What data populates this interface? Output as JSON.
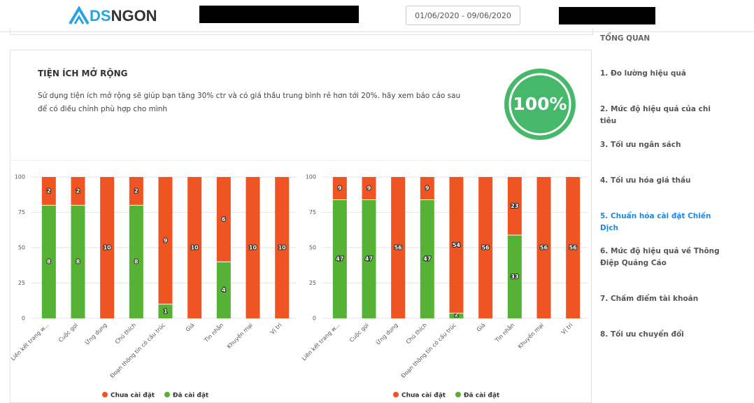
{
  "header": {
    "logo": {
      "part1": "DS",
      "part2": "NGON"
    },
    "date_range": "01/06/2020 - 09/06/2020"
  },
  "section": {
    "title": "TIỆN ÍCH MỞ RỘNG",
    "description": "Sử dụng tiện ích mở rộng sẽ giúp bạn tăng 30% ctr và có giá thầu trung bình rẻ hơn tới 20%. hãy xem báo cáo sau để có điều chỉnh phù hợp cho mình",
    "score": "100%"
  },
  "sidebar": {
    "title": "TỔNG QUAN",
    "items": [
      "1. Đo lường hiệu quả",
      "2. Mức độ hiệu quả của chi tiêu",
      "3. Tối ưu ngân sách",
      "4. Tối ưu hóa giá thầu",
      "5. Chuẩn hóa cài đặt Chiến Dịch",
      "6. Mức độ hiệu quả về Thông Điệp Quảng Cáo",
      "7. Chấm điểm tài khoản",
      "8. Tối ưu chuyển đổi"
    ]
  },
  "chart_data": [
    {
      "type": "bar",
      "stacking": "percent",
      "grid": true,
      "ylim": [
        0,
        100
      ],
      "yticks": [
        0,
        25,
        50,
        75,
        100
      ],
      "categories": [
        "Liên kết trang w...",
        "Cuộc gọi",
        "Ứng dụng",
        "Chú thích",
        "Đoạn thông tin có cấu trúc",
        "Giá",
        "Tin nhắn",
        "Khuyến mại",
        "Vị trí"
      ],
      "series": [
        {
          "name": "Chưa cài đặt",
          "color": "#ee5522",
          "values": [
            2,
            2,
            10,
            2,
            9,
            10,
            6,
            10,
            10
          ]
        },
        {
          "name": "Đã cài đặt",
          "color": "#55b235",
          "values": [
            8,
            8,
            0,
            8,
            1,
            0,
            4,
            0,
            0
          ]
        }
      ]
    },
    {
      "type": "bar",
      "stacking": "percent",
      "grid": true,
      "ylim": [
        0,
        100
      ],
      "yticks": [
        0,
        25,
        50,
        75,
        100
      ],
      "categories": [
        "Liên kết trang w...",
        "Cuộc gọi",
        "Ứng dụng",
        "Chú thích",
        "Đoạn thông tin có cấu trúc",
        "Giá",
        "Tin nhắn",
        "Khuyến mại",
        "Vị trí"
      ],
      "series": [
        {
          "name": "Chưa cài đặt",
          "color": "#ee5522",
          "values": [
            9,
            9,
            56,
            9,
            54,
            56,
            23,
            56,
            56
          ]
        },
        {
          "name": "Đã cài đặt",
          "color": "#55b235",
          "values": [
            47,
            47,
            0,
            47,
            2,
            0,
            33,
            0,
            0
          ]
        }
      ]
    }
  ]
}
